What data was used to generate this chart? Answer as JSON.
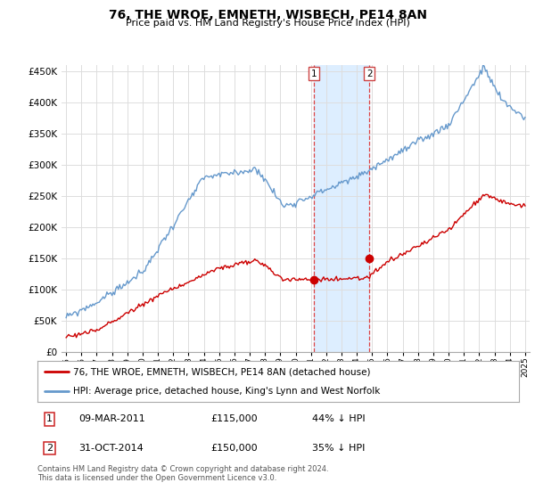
{
  "title": "76, THE WROE, EMNETH, WISBECH, PE14 8AN",
  "subtitle": "Price paid vs. HM Land Registry's House Price Index (HPI)",
  "red_label": "76, THE WROE, EMNETH, WISBECH, PE14 8AN (detached house)",
  "blue_label": "HPI: Average price, detached house, King's Lynn and West Norfolk",
  "footer1": "Contains HM Land Registry data © Crown copyright and database right 2024.",
  "footer2": "This data is licensed under the Open Government Licence v3.0.",
  "annotation1": {
    "num": "1",
    "date": "09-MAR-2011",
    "price": "£115,000",
    "pct": "44% ↓ HPI"
  },
  "annotation2": {
    "num": "2",
    "date": "31-OCT-2014",
    "price": "£150,000",
    "pct": "35% ↓ HPI"
  },
  "point1_year": 2011.19,
  "point1_price": 115000,
  "point2_year": 2014.83,
  "point2_price": 150000,
  "ylim_max": 460000,
  "ylim_min": 0,
  "xlim_min": 1994.7,
  "xlim_max": 2025.3,
  "red_color": "#cc0000",
  "blue_color": "#6699cc",
  "highlight_color": "#ddeeff",
  "grid_color": "#dddddd",
  "background": "#ffffff"
}
